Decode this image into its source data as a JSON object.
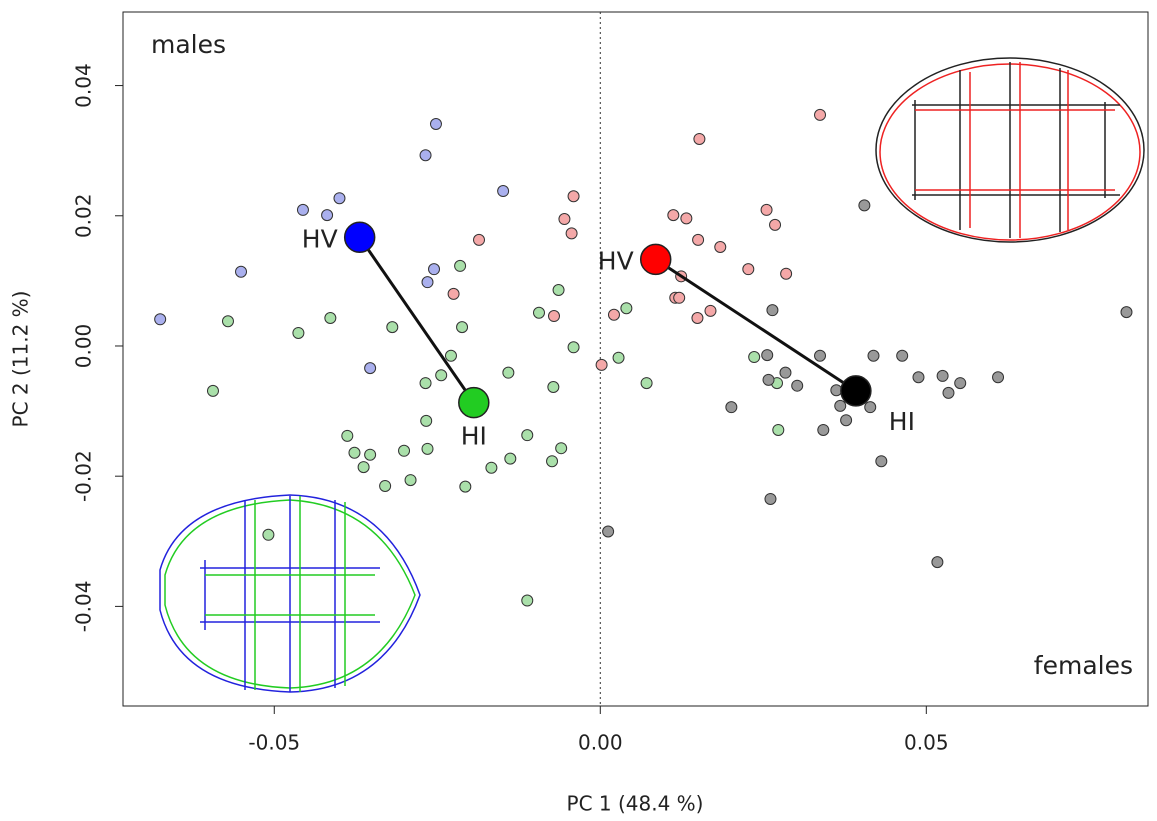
{
  "chart_data": {
    "type": "scatter",
    "xlabel": "PC 1 (48.4 %)",
    "ylabel": "PC 2 (11.2 %)",
    "annotations": [
      "males",
      "females"
    ],
    "xlim": [
      -0.0732,
      0.084
    ],
    "ylim": [
      -0.0553,
      0.0513
    ],
    "xticks": [
      {
        "value": -0.05,
        "label": "-0.05"
      },
      {
        "value": 0,
        "label": "0.00"
      },
      {
        "value": 0.05,
        "label": "0.05"
      }
    ],
    "yticks": [
      {
        "value": -0.04,
        "label": "-0.04"
      },
      {
        "value": -0.02,
        "label": "-0.02"
      },
      {
        "value": 0,
        "label": "0.00"
      },
      {
        "value": 0.02,
        "label": "0.02"
      },
      {
        "value": 0.04,
        "label": "0.04"
      }
    ],
    "vline": 0,
    "series": [
      {
        "color": "#aab0ee",
        "x": [
          -0.0675,
          -0.0456,
          -0.0419,
          -0.04,
          -0.0551,
          -0.0252,
          -0.0268,
          -0.0149,
          -0.0255,
          -0.0265,
          -0.0353
        ],
        "y": [
          0.0041,
          0.0209,
          0.0201,
          0.0227,
          0.0114,
          0.0341,
          0.0293,
          0.0238,
          0.0118,
          0.0098,
          -0.0034
        ]
      },
      {
        "color": "#aae0aa",
        "x": [
          -0.0594,
          -0.0571,
          -0.0463,
          -0.0414,
          -0.0319,
          -0.0388,
          -0.0377,
          -0.0363,
          -0.0353,
          -0.033,
          -0.0301,
          -0.0291,
          -0.0268,
          -0.0267,
          -0.0265,
          -0.0244,
          -0.0229,
          -0.0215,
          -0.0212,
          -0.0207,
          -0.0167,
          -0.0141,
          -0.0138,
          -0.0112,
          -0.0094,
          -0.0072,
          -0.0074,
          -0.0064,
          -0.0041,
          -0.0509,
          -0.0112,
          0.0271,
          0.0273,
          0.0236,
          0.004,
          0.0028,
          0.0071,
          -0.006
        ],
        "y": [
          -0.0069,
          0.0038,
          0.002,
          0.0043,
          0.0029,
          -0.0138,
          -0.0164,
          -0.0186,
          -0.0167,
          -0.0215,
          -0.0161,
          -0.0206,
          -0.0057,
          -0.0115,
          -0.0158,
          -0.0045,
          -0.0015,
          0.0123,
          0.0029,
          -0.0216,
          -0.0187,
          -0.0041,
          -0.0173,
          -0.0137,
          0.0051,
          -0.0063,
          -0.0177,
          0.0086,
          -0.0002,
          -0.029,
          -0.0391,
          -0.0057,
          -0.0129,
          -0.0017,
          0.0058,
          -0.0018,
          -0.0057,
          -0.0157
        ]
      },
      {
        "color": "#f4a8a8",
        "x": [
          -0.0186,
          -0.0225,
          -0.0041,
          -0.0055,
          -0.0044,
          -0.0071,
          0.0002,
          0.0021,
          0.0152,
          0.0112,
          0.0132,
          0.015,
          0.0184,
          0.0149,
          0.0169,
          0.0115,
          0.0121,
          0.0124,
          0.0227,
          0.0255,
          0.0268,
          0.0285,
          0.0337
        ],
        "y": [
          0.0163,
          0.008,
          0.023,
          0.0195,
          0.0173,
          0.0046,
          -0.0029,
          0.0048,
          0.0318,
          0.0201,
          0.0196,
          0.0163,
          0.0152,
          0.0043,
          0.0054,
          0.0074,
          0.0074,
          0.0107,
          0.0118,
          0.0209,
          0.0186,
          0.0111,
          0.0355
        ]
      },
      {
        "color": "#999999",
        "x": [
          0.0405,
          0.0264,
          0.0201,
          0.0256,
          0.0258,
          0.0284,
          0.0302,
          0.0337,
          0.0342,
          0.0362,
          0.0377,
          0.0368,
          0.0414,
          0.0431,
          0.0419,
          0.0463,
          0.0488,
          0.0525,
          0.0534,
          0.0552,
          0.061,
          0.0807,
          0.0261,
          0.0012,
          0.0517
        ],
        "y": [
          0.0216,
          0.0055,
          -0.0094,
          -0.0014,
          -0.0052,
          -0.0041,
          -0.0061,
          -0.0015,
          -0.0129,
          -0.0068,
          -0.0114,
          -0.0092,
          -0.0094,
          -0.0177,
          -0.0015,
          -0.0015,
          -0.0048,
          -0.0046,
          -0.0072,
          -0.0057,
          -0.0048,
          0.0052,
          -0.0235,
          -0.0285,
          -0.0332
        ]
      }
    ],
    "means": [
      [
        {
          "label": "HV",
          "color": "#0000ff",
          "x": -0.0369,
          "y": 0.0167
        },
        {
          "label": "HI",
          "color": "#22cc22",
          "x": -0.0194,
          "y": -0.0087
        }
      ],
      [
        {
          "label": "HV",
          "color": "#ff0000",
          "x": 0.0085,
          "y": 0.0133
        },
        {
          "label": "HI",
          "color": "#000000",
          "x": 0.0392,
          "y": -0.0069
        }
      ]
    ]
  }
}
